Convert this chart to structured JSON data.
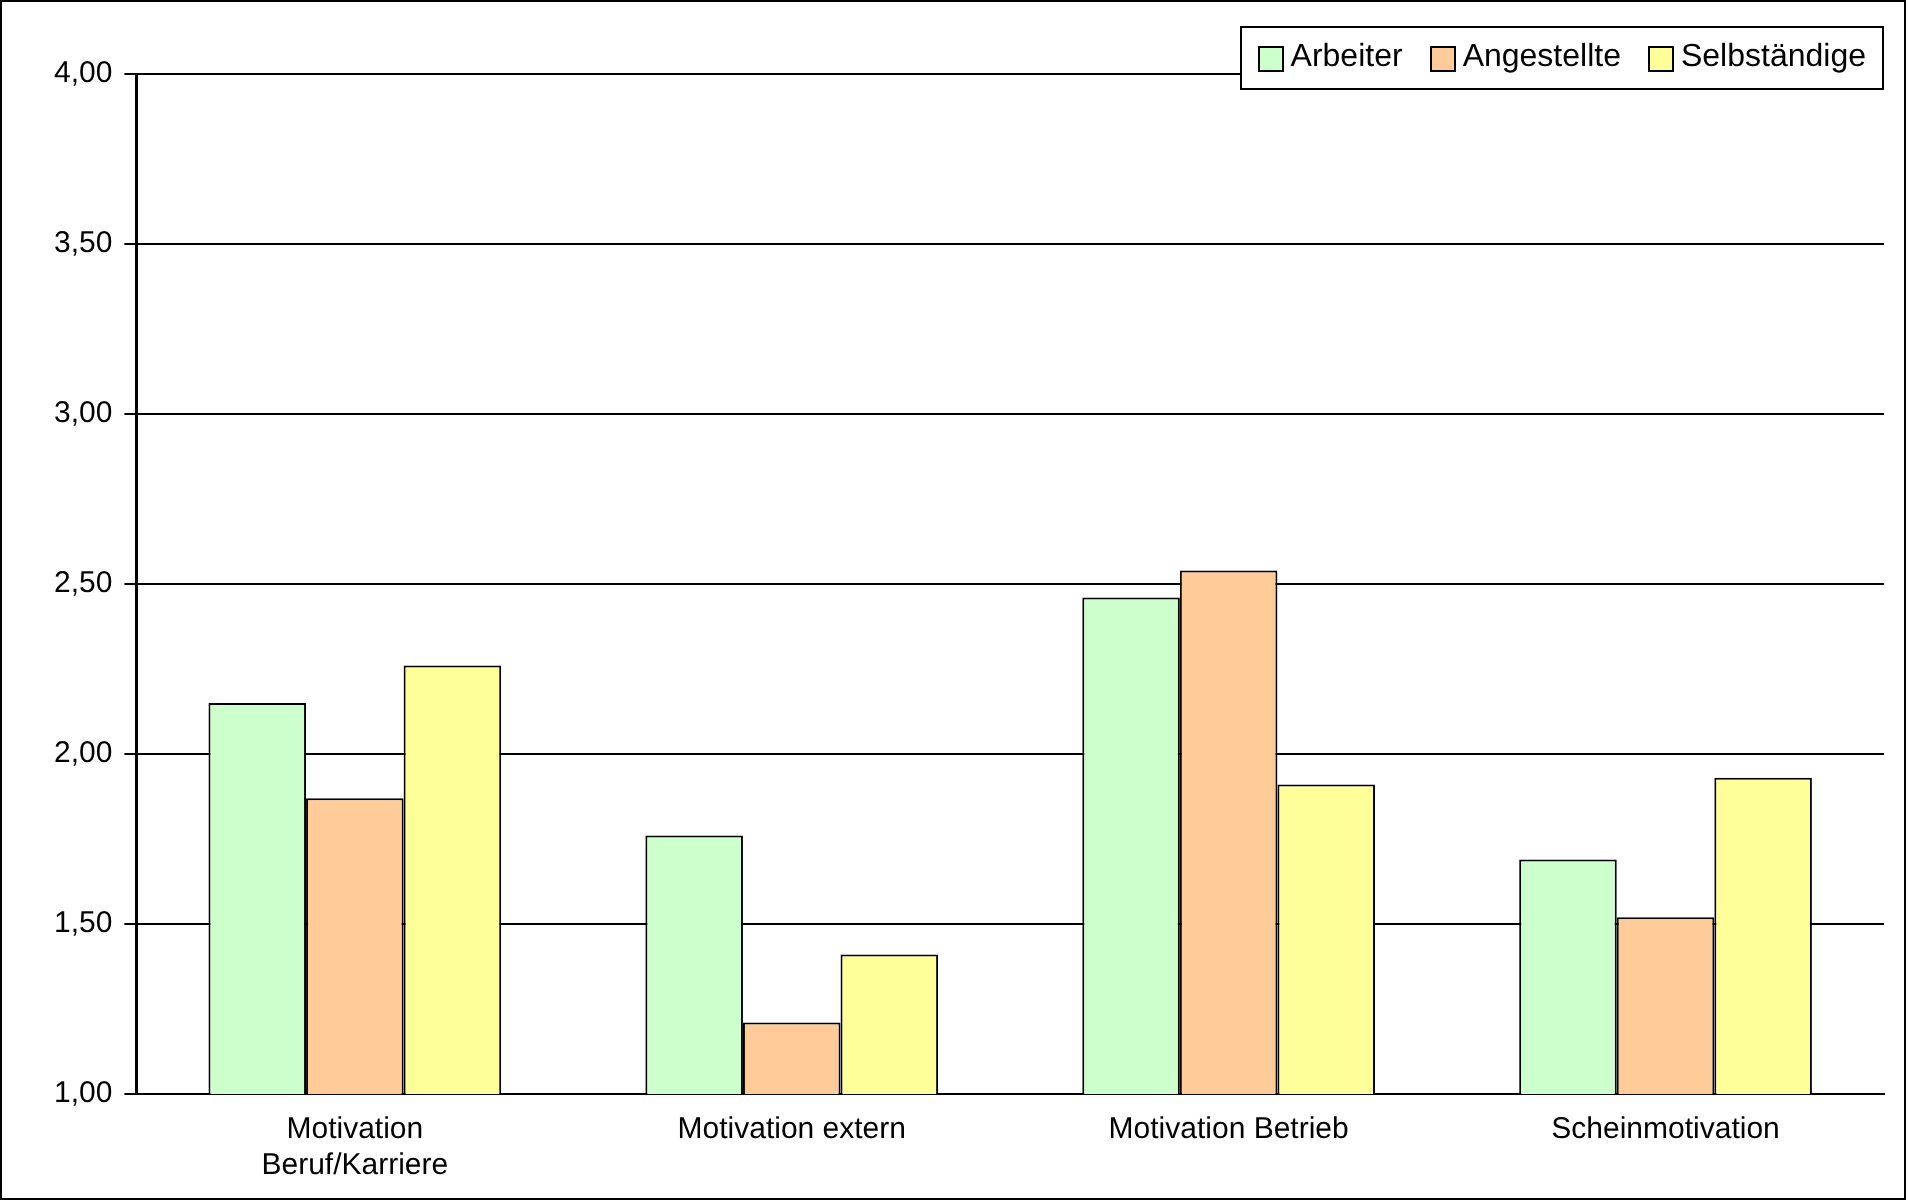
{
  "chart_data": {
    "type": "bar",
    "categories": [
      "Motivation Beruf/Karriere",
      "Motivation extern",
      "Motivation Betrieb",
      "Scheinmotivation"
    ],
    "series": [
      {
        "name": "Arbeiter",
        "color": "#ccffcc",
        "values": [
          2.15,
          1.76,
          2.46,
          1.69
        ]
      },
      {
        "name": "Angestellte",
        "color": "#ffcc99",
        "values": [
          1.87,
          1.21,
          2.54,
          1.52
        ]
      },
      {
        "name": "Selbständige",
        "color": "#ffff99",
        "values": [
          2.26,
          1.41,
          1.91,
          1.93
        ]
      }
    ],
    "ylim": [
      1,
      4
    ],
    "yticks": [
      {
        "value": 1,
        "label": "1,00"
      },
      {
        "value": 1.5,
        "label": "1,50"
      },
      {
        "value": 2,
        "label": "2,00"
      },
      {
        "value": 2.5,
        "label": "2,50"
      },
      {
        "value": 3,
        "label": "3,00"
      },
      {
        "value": 3.5,
        "label": "3,50"
      },
      {
        "value": 4,
        "label": "4,00"
      }
    ],
    "grid": "y",
    "legend": "top right"
  }
}
